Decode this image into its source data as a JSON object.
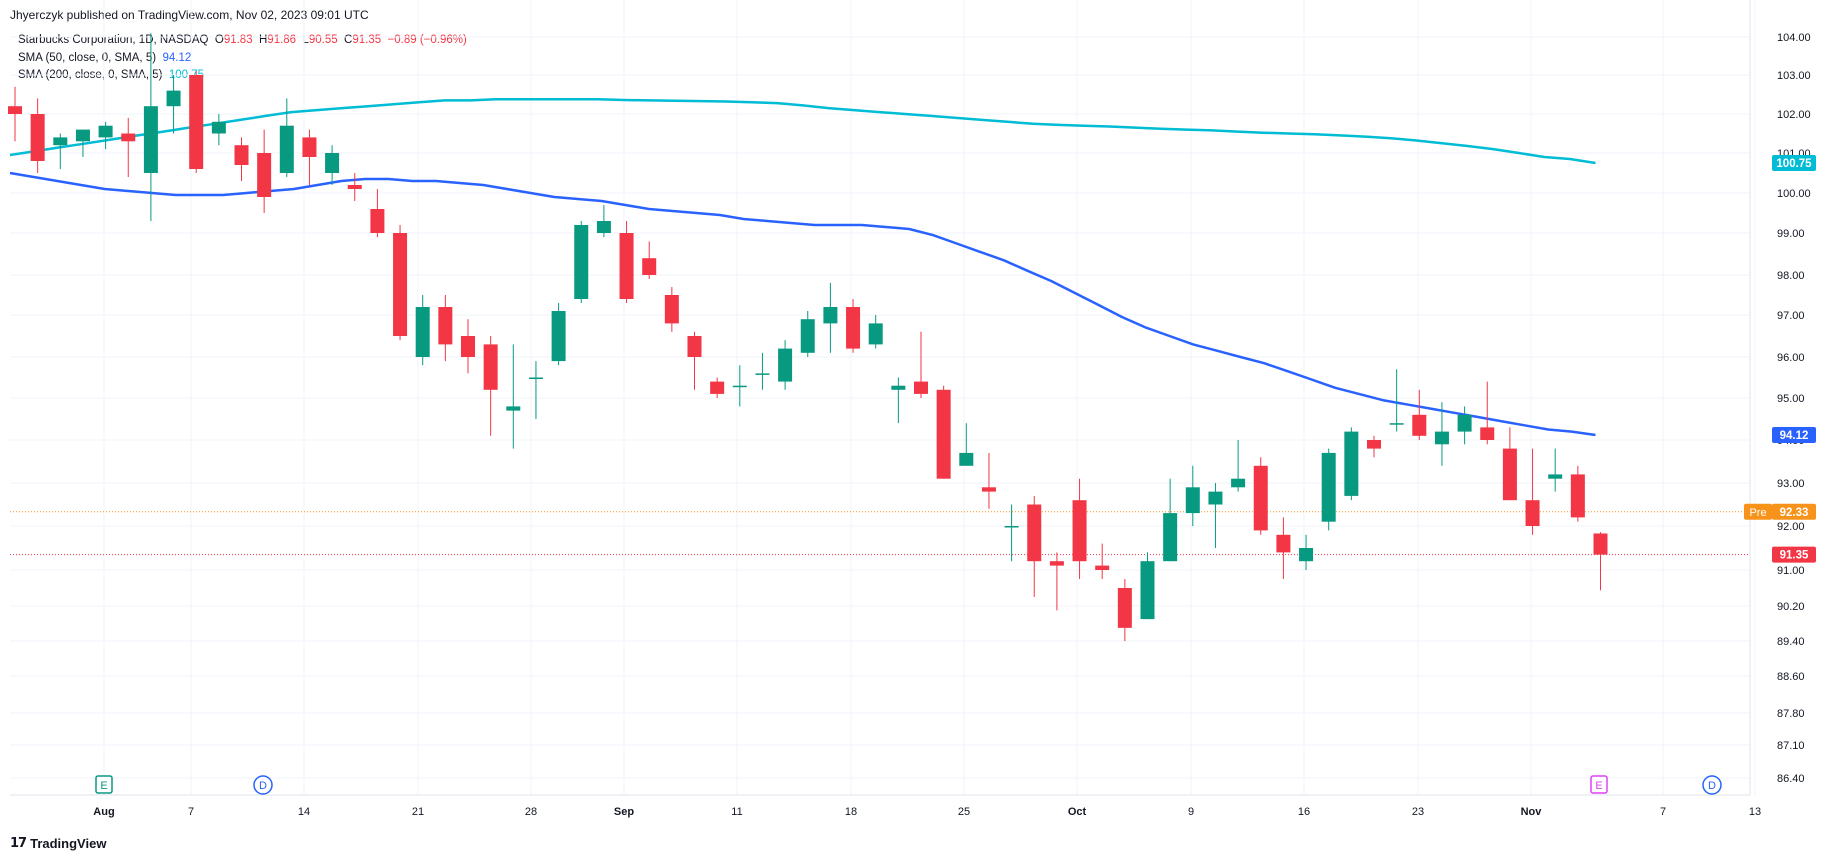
{
  "publisher": "Jhyerczyk published on TradingView.com, Nov 02, 2023 09:01 UTC",
  "brand": {
    "logo_icon": "tradingview-logo-icon",
    "text": "TradingView"
  },
  "legend": {
    "symbol": "Starbucks Corporation, 1D, NASDAQ",
    "open_label": "O",
    "open": "91.83",
    "high_label": "H",
    "high": "91.86",
    "low_label": "L",
    "low": "90.55",
    "close_label": "C",
    "close": "91.35",
    "change": "−0.89 (−0.96%)",
    "sma50_label": "SMA (50, close, 0, SMA, 5)",
    "sma50_value": "94.12",
    "sma200_label": "SMA (200, close, 0, SMA, 5)",
    "sma200_value": "100.75"
  },
  "colors": {
    "up": "#089981",
    "down": "#f23645",
    "sma50": "#2962ff",
    "sma200": "#00bcd4",
    "pre": "#f7931a",
    "grid": "#f0f3fa"
  },
  "chart_data": {
    "type": "candlestick",
    "y_ticks": [
      "104.00",
      "103.00",
      "102.00",
      "101.00",
      "100.00",
      "99.00",
      "98.00",
      "97.00",
      "96.00",
      "95.00",
      "94.00",
      "93.00",
      "92.00",
      "91.00",
      "90.20",
      "89.40",
      "88.60",
      "87.80",
      "87.10",
      "86.40"
    ],
    "x_ticks": [
      "Aug",
      "7",
      "14",
      "21",
      "28",
      "Sep",
      "11",
      "18",
      "25",
      "Oct",
      "9",
      "16",
      "23",
      "Nov",
      "7",
      "13"
    ],
    "candles": [
      {
        "d": "Jul 27",
        "o": 102.2,
        "h": 102.7,
        "l": 101.3,
        "c": 102.0
      },
      {
        "d": "Jul 28",
        "o": 102.0,
        "h": 102.4,
        "l": 100.5,
        "c": 100.8
      },
      {
        "d": "Jul 31",
        "o": 101.2,
        "h": 101.5,
        "l": 100.6,
        "c": 101.4
      },
      {
        "d": "Aug 01",
        "o": 101.3,
        "h": 101.6,
        "l": 100.9,
        "c": 101.6
      },
      {
        "d": "Aug 02",
        "o": 101.4,
        "h": 101.8,
        "l": 101.1,
        "c": 101.7
      },
      {
        "d": "Aug 03",
        "o": 101.5,
        "h": 101.9,
        "l": 100.4,
        "c": 101.3
      },
      {
        "d": "Aug 04",
        "o": 100.5,
        "h": 104.1,
        "l": 99.3,
        "c": 102.2
      },
      {
        "d": "Aug 07",
        "o": 102.2,
        "h": 103.0,
        "l": 101.5,
        "c": 102.6
      },
      {
        "d": "Aug 08",
        "o": 103.0,
        "h": 103.1,
        "l": 100.5,
        "c": 100.6
      },
      {
        "d": "Aug 09",
        "o": 101.5,
        "h": 102.0,
        "l": 101.2,
        "c": 101.8
      },
      {
        "d": "Aug 10",
        "o": 101.2,
        "h": 101.4,
        "l": 100.3,
        "c": 100.7
      },
      {
        "d": "Aug 11",
        "o": 101.0,
        "h": 101.6,
        "l": 99.5,
        "c": 99.9
      },
      {
        "d": "Aug 14",
        "o": 100.5,
        "h": 102.4,
        "l": 100.4,
        "c": 101.7
      },
      {
        "d": "Aug 15",
        "o": 101.4,
        "h": 101.6,
        "l": 100.2,
        "c": 100.9
      },
      {
        "d": "Aug 16",
        "o": 100.5,
        "h": 101.2,
        "l": 100.2,
        "c": 101.0
      },
      {
        "d": "Aug 17",
        "o": 100.2,
        "h": 100.5,
        "l": 99.8,
        "c": 100.1
      },
      {
        "d": "Aug 18",
        "o": 99.6,
        "h": 100.1,
        "l": 98.9,
        "c": 99.0
      },
      {
        "d": "Aug 21",
        "o": 99.0,
        "h": 99.2,
        "l": 96.4,
        "c": 96.5
      },
      {
        "d": "Aug 22",
        "o": 96.0,
        "h": 97.5,
        "l": 95.8,
        "c": 97.2
      },
      {
        "d": "Aug 23",
        "o": 97.2,
        "h": 97.5,
        "l": 95.9,
        "c": 96.3
      },
      {
        "d": "Aug 24",
        "o": 96.5,
        "h": 96.9,
        "l": 95.6,
        "c": 96.0
      },
      {
        "d": "Aug 25",
        "o": 96.3,
        "h": 96.5,
        "l": 94.1,
        "c": 95.2
      },
      {
        "d": "Aug 28",
        "o": 94.7,
        "h": 96.3,
        "l": 93.8,
        "c": 94.8
      },
      {
        "d": "Aug 29",
        "o": 95.5,
        "h": 95.9,
        "l": 94.5,
        "c": 95.5
      },
      {
        "d": "Aug 30",
        "o": 95.9,
        "h": 97.3,
        "l": 95.8,
        "c": 97.1
      },
      {
        "d": "Aug 31",
        "o": 97.4,
        "h": 99.3,
        "l": 97.3,
        "c": 99.2
      },
      {
        "d": "Sep 01",
        "o": 99.0,
        "h": 99.7,
        "l": 98.9,
        "c": 99.3
      },
      {
        "d": "Sep 05",
        "o": 99.0,
        "h": 99.3,
        "l": 97.3,
        "c": 97.4
      },
      {
        "d": "Sep 06",
        "o": 98.4,
        "h": 98.8,
        "l": 97.9,
        "c": 98.0
      },
      {
        "d": "Sep 07",
        "o": 97.5,
        "h": 97.7,
        "l": 96.6,
        "c": 96.8
      },
      {
        "d": "Sep 08",
        "o": 96.5,
        "h": 96.6,
        "l": 95.2,
        "c": 96.0
      },
      {
        "d": "Sep 11",
        "o": 95.4,
        "h": 95.5,
        "l": 95.0,
        "c": 95.1
      },
      {
        "d": "Sep 12",
        "o": 95.3,
        "h": 95.8,
        "l": 94.8,
        "c": 95.3
      },
      {
        "d": "Sep 13",
        "o": 95.6,
        "h": 96.1,
        "l": 95.2,
        "c": 95.6
      },
      {
        "d": "Sep 14",
        "o": 95.4,
        "h": 96.4,
        "l": 95.2,
        "c": 96.2
      },
      {
        "d": "Sep 15",
        "o": 96.1,
        "h": 97.1,
        "l": 96.0,
        "c": 96.9
      },
      {
        "d": "Sep 18",
        "o": 96.8,
        "h": 97.8,
        "l": 96.1,
        "c": 97.2
      },
      {
        "d": "Sep 19",
        "o": 97.2,
        "h": 97.4,
        "l": 96.1,
        "c": 96.2
      },
      {
        "d": "Sep 20",
        "o": 96.3,
        "h": 97.0,
        "l": 96.2,
        "c": 96.8
      },
      {
        "d": "Sep 21",
        "o": 95.2,
        "h": 95.5,
        "l": 94.4,
        "c": 95.3
      },
      {
        "d": "Sep 22",
        "o": 95.4,
        "h": 96.6,
        "l": 95.0,
        "c": 95.1
      },
      {
        "d": "Sep 25",
        "o": 95.2,
        "h": 95.3,
        "l": 93.1,
        "c": 93.1
      },
      {
        "d": "Sep 26",
        "o": 93.4,
        "h": 94.4,
        "l": 93.4,
        "c": 93.7
      },
      {
        "d": "Sep 27",
        "o": 92.9,
        "h": 93.7,
        "l": 92.4,
        "c": 92.8
      },
      {
        "d": "Sep 28",
        "o": 92.0,
        "h": 92.5,
        "l": 91.2,
        "c": 92.0
      },
      {
        "d": "Sep 29",
        "o": 92.5,
        "h": 92.7,
        "l": 90.4,
        "c": 91.2
      },
      {
        "d": "Oct 02",
        "o": 91.2,
        "h": 91.4,
        "l": 90.1,
        "c": 91.1
      },
      {
        "d": "Oct 03",
        "o": 92.6,
        "h": 93.1,
        "l": 90.8,
        "c": 91.2
      },
      {
        "d": "Oct 04",
        "o": 91.1,
        "h": 91.6,
        "l": 90.8,
        "c": 91.0
      },
      {
        "d": "Oct 05",
        "o": 90.6,
        "h": 90.8,
        "l": 89.4,
        "c": 89.7
      },
      {
        "d": "Oct 06",
        "o": 89.9,
        "h": 91.4,
        "l": 89.9,
        "c": 91.2
      },
      {
        "d": "Oct 09",
        "o": 91.2,
        "h": 93.1,
        "l": 91.2,
        "c": 92.3
      },
      {
        "d": "Oct 10",
        "o": 92.3,
        "h": 93.4,
        "l": 92.0,
        "c": 92.9
      },
      {
        "d": "Oct 11",
        "o": 92.5,
        "h": 93.0,
        "l": 91.5,
        "c": 92.8
      },
      {
        "d": "Oct 12",
        "o": 92.9,
        "h": 94.0,
        "l": 92.8,
        "c": 93.1
      },
      {
        "d": "Oct 13",
        "o": 93.4,
        "h": 93.6,
        "l": 91.8,
        "c": 91.9
      },
      {
        "d": "Oct 16",
        "o": 91.8,
        "h": 92.2,
        "l": 90.8,
        "c": 91.4
      },
      {
        "d": "Oct 17",
        "o": 91.2,
        "h": 91.8,
        "l": 91.0,
        "c": 91.5
      },
      {
        "d": "Oct 18",
        "o": 92.1,
        "h": 93.8,
        "l": 91.9,
        "c": 93.7
      },
      {
        "d": "Oct 19",
        "o": 92.7,
        "h": 94.3,
        "l": 92.6,
        "c": 94.2
      },
      {
        "d": "Oct 20",
        "o": 94.0,
        "h": 94.1,
        "l": 93.6,
        "c": 93.8
      },
      {
        "d": "Oct 23",
        "o": 94.4,
        "h": 95.7,
        "l": 94.2,
        "c": 94.4
      },
      {
        "d": "Oct 24",
        "o": 94.6,
        "h": 95.2,
        "l": 94.0,
        "c": 94.1
      },
      {
        "d": "Oct 25",
        "o": 93.9,
        "h": 94.9,
        "l": 93.4,
        "c": 94.2
      },
      {
        "d": "Oct 26",
        "o": 94.2,
        "h": 94.8,
        "l": 93.9,
        "c": 94.6
      },
      {
        "d": "Oct 27",
        "o": 94.3,
        "h": 95.4,
        "l": 93.9,
        "c": 94.0
      },
      {
        "d": "Oct 30",
        "o": 93.8,
        "h": 94.3,
        "l": 92.6,
        "c": 92.6
      },
      {
        "d": "Oct 31",
        "o": 92.6,
        "h": 93.8,
        "l": 91.8,
        "c": 92.0
      },
      {
        "d": "Nov 01",
        "o": 93.1,
        "h": 93.8,
        "l": 92.8,
        "c": 93.2
      },
      {
        "d": "Nov 02",
        "o": 93.2,
        "h": 93.4,
        "l": 92.1,
        "c": 92.2
      },
      {
        "d": "Nov 03",
        "o": 91.83,
        "h": 91.86,
        "l": 90.55,
        "c": 91.35
      }
    ],
    "sma50": [
      100.5,
      100.4,
      100.3,
      100.2,
      100.1,
      100.05,
      100.0,
      99.95,
      99.95,
      99.95,
      100.0,
      100.05,
      100.1,
      100.2,
      100.3,
      100.35,
      100.35,
      100.3,
      100.3,
      100.25,
      100.2,
      100.1,
      100.0,
      99.9,
      99.85,
      99.8,
      99.7,
      99.6,
      99.55,
      99.5,
      99.45,
      99.35,
      99.3,
      99.25,
      99.2,
      99.2,
      99.2,
      99.15,
      99.1,
      98.95,
      98.75,
      98.55,
      98.35,
      98.1,
      97.85,
      97.55,
      97.25,
      96.95,
      96.7,
      96.5,
      96.3,
      96.15,
      96.0,
      95.85,
      95.65,
      95.45,
      95.25,
      95.1,
      94.95,
      94.85,
      94.75,
      94.65,
      94.55,
      94.45,
      94.35,
      94.25,
      94.2,
      94.12
    ],
    "sma200": [
      100.95,
      101.05,
      101.15,
      101.25,
      101.35,
      101.45,
      101.55,
      101.65,
      101.75,
      101.85,
      101.95,
      102.05,
      102.1,
      102.15,
      102.2,
      102.25,
      102.3,
      102.35,
      102.35,
      102.38,
      102.38,
      102.38,
      102.38,
      102.38,
      102.36,
      102.35,
      102.34,
      102.33,
      102.32,
      102.3,
      102.28,
      102.22,
      102.15,
      102.1,
      102.05,
      102.0,
      101.95,
      101.9,
      101.85,
      101.8,
      101.75,
      101.72,
      101.7,
      101.68,
      101.65,
      101.62,
      101.6,
      101.58,
      101.55,
      101.52,
      101.5,
      101.48,
      101.45,
      101.42,
      101.38,
      101.32,
      101.25,
      101.18,
      101.1,
      101.0,
      100.9,
      100.85,
      100.75
    ],
    "price_labels": [
      {
        "name": "sma200",
        "value": "100.75"
      },
      {
        "name": "sma50",
        "value": "94.12"
      },
      {
        "name": "pre",
        "prefix": "Pre",
        "value": "92.33"
      },
      {
        "name": "last",
        "value": "91.35"
      }
    ],
    "markers": [
      {
        "date": "Aug 01",
        "letter": "E",
        "type": "earnings"
      },
      {
        "date": "Aug 10",
        "letter": "D",
        "type": "dividend"
      },
      {
        "date": "Nov 03",
        "letter": "E",
        "type": "earnings"
      },
      {
        "date": "Nov 09",
        "letter": "D",
        "type": "dividend"
      }
    ]
  }
}
